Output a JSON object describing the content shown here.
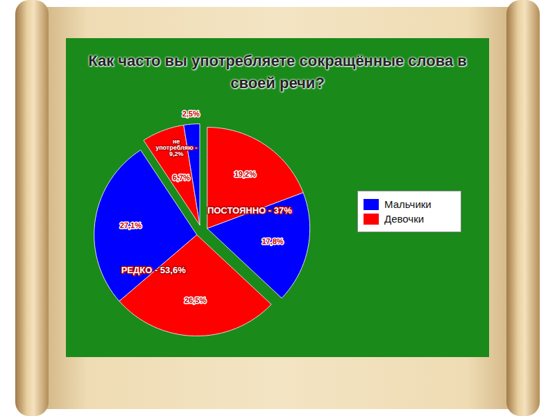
{
  "chart_data": {
    "type": "pie",
    "title": "Как часто вы употребляете сокращённые слова в своей речи?",
    "categories": [
      "ПОСТОЯННО - 37%",
      "РЕДКО - 53,6%",
      "не употребляю - 9,2%"
    ],
    "series": [
      {
        "name": "Девочки",
        "color": "#ff0000",
        "values": [
          19.2,
          26.5,
          6.7
        ],
        "value_labels": [
          "19,2%",
          "26,5%",
          "6,7%"
        ]
      },
      {
        "name": "Мальчики",
        "color": "#0000ff",
        "values": [
          17.8,
          27.1,
          2.5
        ],
        "value_labels": [
          "17,8%",
          "27,1%",
          "2,5%"
        ]
      }
    ],
    "data_labels": true,
    "legend": "right"
  }
}
